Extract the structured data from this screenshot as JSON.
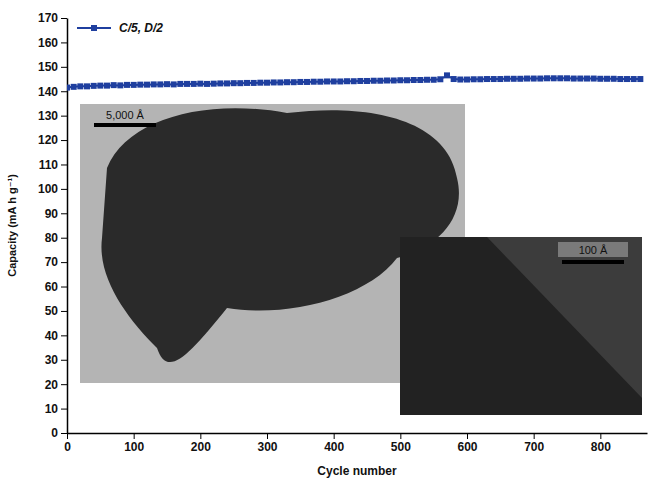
{
  "chart_data": {
    "type": "line",
    "x_label": "Cycle number",
    "y_label": "Capacity (mA h g⁻¹)",
    "annotations": [
      "5,000 Å",
      "100 Å"
    ],
    "legend": "upper left",
    "grid": false,
    "xlim": [
      0,
      870
    ],
    "xticks": [
      0,
      100,
      200,
      300,
      400,
      500,
      600,
      700,
      800
    ],
    "ylim": [
      0,
      170
    ],
    "yticks": [
      0,
      10,
      20,
      30,
      40,
      50,
      60,
      70,
      80,
      90,
      100,
      110,
      120,
      130,
      140,
      150,
      160,
      170
    ],
    "x": [
      0,
      10,
      20,
      30,
      40,
      50,
      60,
      70,
      80,
      90,
      100,
      110,
      120,
      130,
      140,
      150,
      160,
      170,
      180,
      190,
      200,
      210,
      220,
      230,
      240,
      250,
      260,
      270,
      280,
      290,
      300,
      310,
      320,
      330,
      340,
      350,
      360,
      370,
      380,
      390,
      400,
      410,
      420,
      430,
      440,
      450,
      460,
      470,
      480,
      490,
      500,
      510,
      520,
      530,
      540,
      550,
      560,
      570,
      580,
      590,
      600,
      610,
      620,
      630,
      640,
      650,
      660,
      670,
      680,
      690,
      700,
      710,
      720,
      730,
      740,
      750,
      760,
      770,
      780,
      790,
      800,
      810,
      820,
      830,
      840,
      850,
      860
    ],
    "series": [
      {
        "name": "C/5, D/2",
        "color": "#1f3f9f",
        "marker": "square",
        "line_style": "solid",
        "values": [
          141.5,
          141.8,
          142,
          142,
          142.2,
          142.3,
          142.3,
          142.5,
          142.4,
          142.6,
          142.6,
          142.7,
          142.7,
          142.8,
          142.8,
          142.9,
          142.8,
          143,
          143,
          143,
          143.1,
          143,
          143.1,
          143.2,
          143.2,
          143.3,
          143.3,
          143.4,
          143.4,
          143.5,
          143.5,
          143.6,
          143.6,
          143.7,
          143.7,
          143.8,
          143.8,
          143.9,
          143.9,
          144,
          144,
          144,
          144.1,
          144.1,
          144.2,
          144.2,
          144.3,
          144.3,
          144.4,
          144.4,
          144.5,
          144.5,
          144.6,
          144.6,
          144.7,
          144.7,
          144.9,
          146.5,
          145,
          144.8,
          144.8,
          144.9,
          144.9,
          145,
          145,
          145,
          145.1,
          145.1,
          145.1,
          145.2,
          145.2,
          145.2,
          145.3,
          145.3,
          145.3,
          145.3,
          145.2,
          145.2,
          145.2,
          145.2,
          145.1,
          145.1,
          145.1,
          145,
          145,
          145,
          145
        ]
      }
    ]
  }
}
